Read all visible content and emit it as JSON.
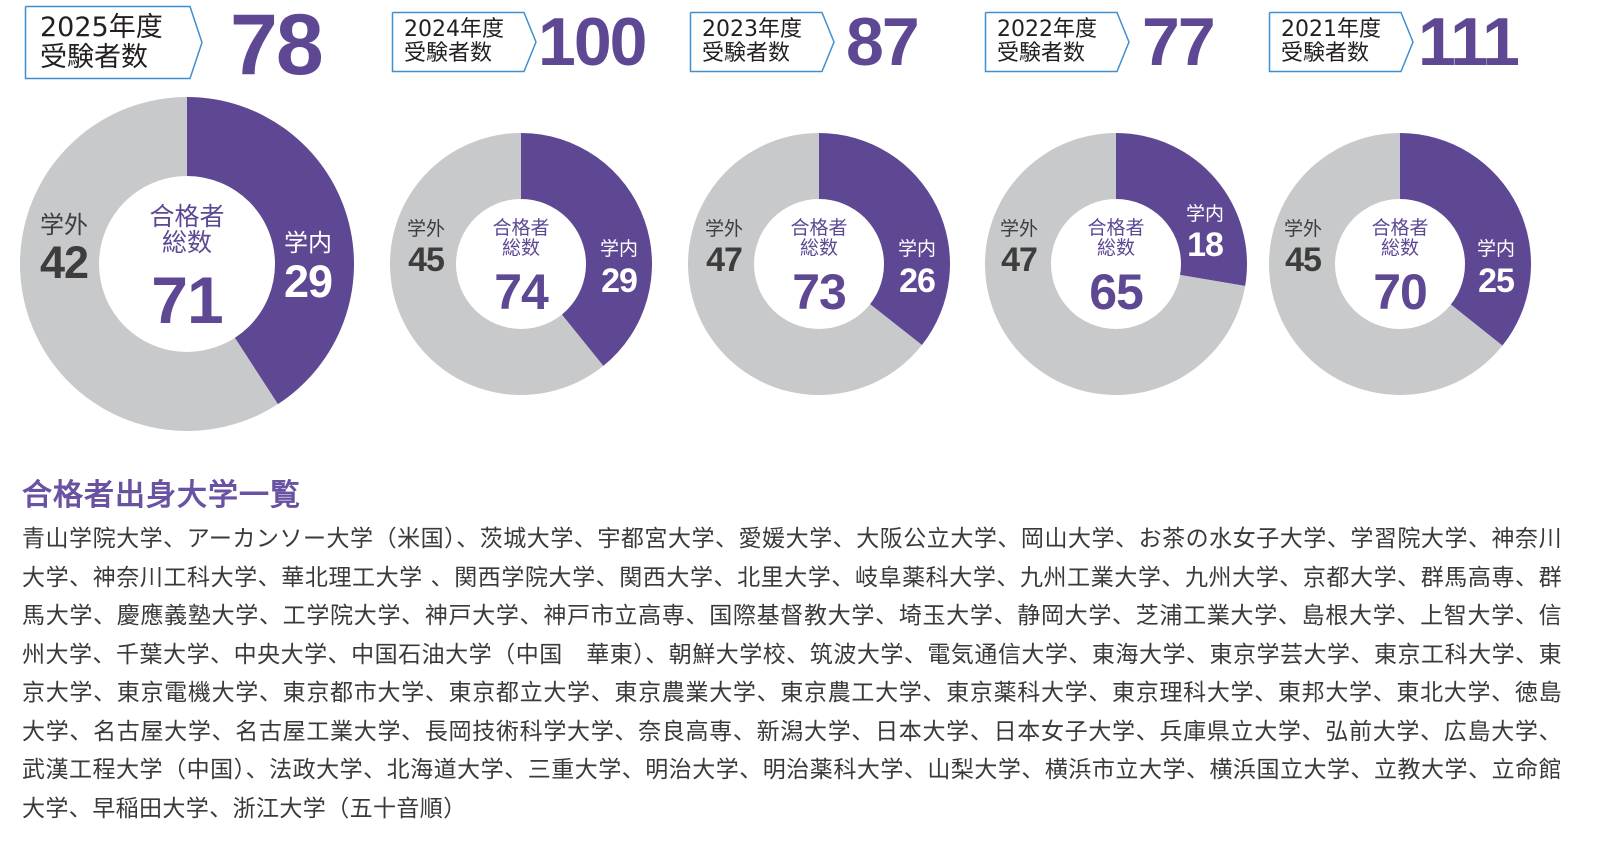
{
  "colors": {
    "accent_purple": "#5e4894",
    "title_purple": "#6a52a3",
    "ring_gray": "#c8c9cb",
    "label_border": "#3f8fd0",
    "outside_text": "#3d3d3d",
    "body_text": "#3a3a3a"
  },
  "years": [
    {
      "label_line1": "2025年度",
      "label_line2": "受験者数",
      "applicants": "78",
      "center_line1": "合格者",
      "center_line2": "総数",
      "total_passed": "71",
      "outside_label": "学外",
      "outside_value": "42",
      "inside_label": "学内",
      "inside_value": "29"
    },
    {
      "label_line1": "2024年度",
      "label_line2": "受験者数",
      "applicants": "100",
      "center_line1": "合格者",
      "center_line2": "総数",
      "total_passed": "74",
      "outside_label": "学外",
      "outside_value": "45",
      "inside_label": "学内",
      "inside_value": "29"
    },
    {
      "label_line1": "2023年度",
      "label_line2": "受験者数",
      "applicants": "87",
      "center_line1": "合格者",
      "center_line2": "総数",
      "total_passed": "73",
      "outside_label": "学外",
      "outside_value": "47",
      "inside_label": "学内",
      "inside_value": "26"
    },
    {
      "label_line1": "2022年度",
      "label_line2": "受験者数",
      "applicants": "77",
      "center_line1": "合格者",
      "center_line2": "総数",
      "total_passed": "65",
      "outside_label": "学外",
      "outside_value": "47",
      "inside_label": "学内",
      "inside_value": "18"
    },
    {
      "label_line1": "2021年度",
      "label_line2": "受験者数",
      "applicants": "111",
      "center_line1": "合格者",
      "center_line2": "総数",
      "total_passed": "70",
      "outside_label": "学外",
      "outside_value": "45",
      "inside_label": "学内",
      "inside_value": "25"
    }
  ],
  "university_list": {
    "title": "合格者出身大学一覧",
    "text": "青山学院大学、アーカンソー大学（米国）、茨城大学、宇都宮大学、愛媛大学、大阪公立大学、岡山大学、お茶の水女子大学、学習院大学、神奈川大学、神奈川工科大学、華北理工大学 、関西学院大学、関西大学、北里大学、岐阜薬科大学、九州工業大学、九州大学、京都大学、群馬高専、群馬大学、慶應義塾大学、工学院大学、神戸大学、神戸市立高専、国際基督教大学、埼玉大学、静岡大学、芝浦工業大学、島根大学、上智大学、信州大学、千葉大学、中央大学、中国石油大学（中国　華東）、朝鮮大学校、筑波大学、電気通信大学、東海大学、東京学芸大学、東京工科大学、東京大学、東京電機大学、東京都市大学、東京都立大学、東京農業大学、東京農工大学、東京薬科大学、東京理科大学、東邦大学、東北大学、徳島大学、名古屋大学、名古屋工業大学、長岡技術科学大学、奈良高専、新潟大学、日本大学、日本女子大学、兵庫県立大学、弘前大学、広島大学、武漢工程大学（中国）、法政大学、北海道大学、三重大学、明治大学、明治薬科大学、山梨大学、横浜市立大学、横浜国立大学、立教大学、立命館大学、早稲田大学、浙江大学（五十音順）"
  },
  "chart_data": [
    {
      "type": "pie",
      "title": "2025年度 合格者総数",
      "applicants": 78,
      "total": 71,
      "categories": [
        "学内",
        "学外"
      ],
      "values": [
        29,
        42
      ],
      "colors": [
        "#5e4894",
        "#c8c9cb"
      ]
    },
    {
      "type": "pie",
      "title": "2024年度 合格者総数",
      "applicants": 100,
      "total": 74,
      "categories": [
        "学内",
        "学外"
      ],
      "values": [
        29,
        45
      ],
      "colors": [
        "#5e4894",
        "#c8c9cb"
      ]
    },
    {
      "type": "pie",
      "title": "2023年度 合格者総数",
      "applicants": 87,
      "total": 73,
      "categories": [
        "学内",
        "学外"
      ],
      "values": [
        26,
        47
      ],
      "colors": [
        "#5e4894",
        "#c8c9cb"
      ]
    },
    {
      "type": "pie",
      "title": "2022年度 合格者総数",
      "applicants": 77,
      "total": 65,
      "categories": [
        "学内",
        "学外"
      ],
      "values": [
        18,
        47
      ],
      "colors": [
        "#5e4894",
        "#c8c9cb"
      ]
    },
    {
      "type": "pie",
      "title": "2021年度 合格者総数",
      "applicants": 111,
      "total": 70,
      "categories": [
        "学内",
        "学外"
      ],
      "values": [
        25,
        45
      ],
      "colors": [
        "#5e4894",
        "#c8c9cb"
      ]
    }
  ]
}
